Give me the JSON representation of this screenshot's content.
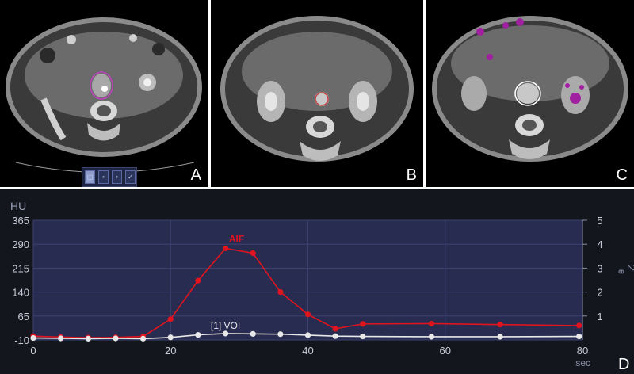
{
  "panels": [
    {
      "letter": "A",
      "toolbar": {
        "buttons": [
          "select-icon",
          "aif-icon",
          "voi-icon",
          "confirm-icon"
        ]
      }
    },
    {
      "letter": "B"
    },
    {
      "letter": "C"
    }
  ],
  "chart_data": {
    "type": "line",
    "panel_letter": "D",
    "y_left_label": "HU",
    "y_right_label": "2",
    "x_unit_label": "sec",
    "xlim": [
      0,
      80
    ],
    "ylim_left": [
      -10,
      365
    ],
    "ylim_right": [
      0,
      5
    ],
    "x_ticks": [
      0,
      20,
      40,
      60,
      80
    ],
    "y_left_ticks": [
      -10,
      65,
      140,
      215,
      290,
      365
    ],
    "y_right_ticks": [
      1,
      2,
      3,
      4,
      5
    ],
    "grid": true,
    "series": [
      {
        "name": "AIF",
        "color": "#e0141e",
        "marker": "circle",
        "x": [
          0,
          4,
          8,
          12,
          16,
          20,
          24,
          28,
          32,
          36,
          40,
          44,
          48,
          58,
          68,
          79.5
        ],
        "y": [
          2,
          -1,
          -3,
          -2,
          1,
          55,
          176,
          277,
          262,
          140,
          70,
          25,
          40,
          41,
          38,
          35
        ]
      },
      {
        "name": "[1] VOI",
        "color": "#e8e8e8",
        "marker": "circle",
        "x": [
          0,
          4,
          8,
          12,
          16,
          20,
          24,
          28,
          32,
          36,
          40,
          44,
          48,
          58,
          68,
          79.5
        ],
        "y": [
          -4,
          -5,
          -6,
          -5,
          -6,
          -2,
          6,
          10,
          9,
          8,
          5,
          2,
          1,
          0,
          0,
          1
        ]
      }
    ]
  }
}
